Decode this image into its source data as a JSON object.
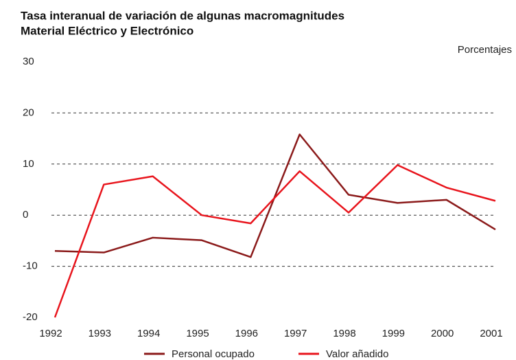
{
  "chart_data": {
    "type": "line",
    "title": "Tasa interanual de variación de algunas macromagnitudes",
    "subtitle": "Material Eléctrico y Electrónico",
    "y_label": "Porcentajes",
    "x": [
      1992,
      1993,
      1994,
      1995,
      1996,
      1997,
      1998,
      1999,
      2000,
      2001
    ],
    "xlim": [
      1992,
      2001
    ],
    "series": [
      {
        "name": "Personal ocupado",
        "color": "#8b1a1a",
        "values": [
          -7,
          -7.3,
          -4.4,
          -4.9,
          -8.2,
          15.8,
          4,
          2.4,
          3,
          -2.8
        ]
      },
      {
        "name": "Valor añadido",
        "color": "#e8141c",
        "values": [
          -20,
          6,
          7.6,
          0,
          -1.6,
          8.6,
          0.5,
          9.8,
          5.4,
          2.8
        ]
      }
    ],
    "ylim": [
      -20,
      30
    ],
    "yticks": [
      -20,
      -10,
      0,
      10,
      20,
      30
    ],
    "grid": true,
    "legend": "bottom"
  }
}
